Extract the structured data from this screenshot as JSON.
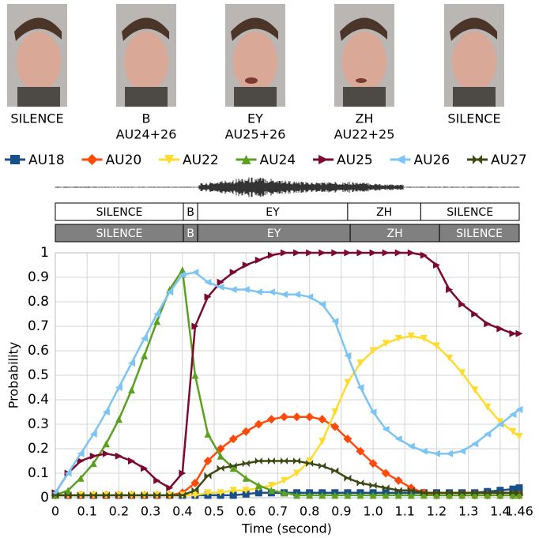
{
  "frames": [
    {
      "labels": [
        "SILENCE"
      ]
    },
    {
      "labels": [
        "B",
        "AU24+26"
      ]
    },
    {
      "labels": [
        "EY",
        "AU25+26"
      ]
    },
    {
      "labels": [
        "ZH",
        "AU22+25"
      ]
    },
    {
      "labels": [
        "SILENCE"
      ]
    }
  ],
  "chart_data": {
    "type": "line",
    "xlabel": "Time (second)",
    "ylabel": "Probability",
    "xlim": [
      0,
      1.46
    ],
    "ylim": [
      0,
      1
    ],
    "xticks": [
      0,
      0.1,
      0.2,
      0.3,
      0.4,
      0.5,
      0.6,
      0.7,
      0.8,
      0.9,
      {
        "value": 1,
        "label": "1.0"
      },
      1.1,
      1.2,
      1.3,
      1.4,
      1.46
    ],
    "yticks": [
      0,
      0.1,
      0.2,
      0.3,
      0.4,
      0.5,
      0.6,
      0.7,
      0.8,
      0.9,
      1
    ],
    "grid": true,
    "segments": [
      [
        {
          "label": "SILENCE",
          "start": 0,
          "end": 0.403
        },
        {
          "label": "B",
          "start": 0.403,
          "end": 0.448
        },
        {
          "label": "EY",
          "start": 0.448,
          "end": 0.92
        },
        {
          "label": "ZH",
          "start": 0.92,
          "end": 1.15
        },
        {
          "label": "SILENCE",
          "start": 1.15,
          "end": 1.46
        }
      ],
      [
        {
          "label": "SILENCE",
          "start": 0,
          "end": 0.403
        },
        {
          "label": "B",
          "start": 0.403,
          "end": 0.448
        },
        {
          "label": "EY",
          "start": 0.448,
          "end": 0.928
        },
        {
          "label": "ZH",
          "start": 0.928,
          "end": 1.209
        },
        {
          "label": "SILENCE",
          "start": 1.209,
          "end": 1.46
        }
      ]
    ],
    "x": [
      0,
      0.04,
      0.08,
      0.12,
      0.16,
      0.2,
      0.24,
      0.28,
      0.32,
      0.36,
      0.4,
      0.44,
      0.48,
      0.52,
      0.56,
      0.6,
      0.64,
      0.68,
      0.72,
      0.76,
      0.8,
      0.84,
      0.88,
      0.92,
      0.96,
      1.0,
      1.04,
      1.08,
      1.12,
      1.16,
      1.2,
      1.24,
      1.28,
      1.32,
      1.36,
      1.4,
      1.44,
      1.46
    ],
    "series": [
      {
        "name": "AU18",
        "color": "#1a4f8a",
        "marker": "square",
        "values": [
          0.01,
          0.01,
          0.01,
          0.01,
          0.01,
          0.01,
          0.01,
          0.01,
          0.01,
          0.01,
          0.01,
          0.01,
          0.01,
          0.01,
          0.01,
          0.015,
          0.02,
          0.02,
          0.02,
          0.02,
          0.02,
          0.02,
          0.02,
          0.02,
          0.02,
          0.02,
          0.02,
          0.02,
          0.02,
          0.02,
          0.02,
          0.02,
          0.02,
          0.02,
          0.025,
          0.03,
          0.035,
          0.04
        ]
      },
      {
        "name": "AU20",
        "color": "#ff4a0a",
        "marker": "diamond",
        "values": [
          0.01,
          0.01,
          0.01,
          0.01,
          0.01,
          0.01,
          0.01,
          0.01,
          0.01,
          0.01,
          0.02,
          0.06,
          0.15,
          0.2,
          0.24,
          0.27,
          0.3,
          0.32,
          0.33,
          0.33,
          0.33,
          0.32,
          0.29,
          0.24,
          0.19,
          0.14,
          0.1,
          0.07,
          0.04,
          0.02,
          0.01,
          0.01,
          0.01,
          0.01,
          0.01,
          0.01,
          0.01,
          0.01
        ]
      },
      {
        "name": "AU22",
        "color": "#ffdb2e",
        "marker": "triangle-down",
        "values": [
          0.01,
          0.01,
          0.01,
          0.01,
          0.01,
          0.01,
          0.01,
          0.01,
          0.01,
          0.01,
          0.01,
          0.01,
          0.02,
          0.02,
          0.03,
          0.03,
          0.04,
          0.05,
          0.07,
          0.1,
          0.15,
          0.23,
          0.35,
          0.47,
          0.55,
          0.6,
          0.63,
          0.65,
          0.66,
          0.65,
          0.62,
          0.57,
          0.51,
          0.44,
          0.37,
          0.31,
          0.27,
          0.25
        ]
      },
      {
        "name": "AU24",
        "color": "#5ca021",
        "marker": "triangle-up",
        "values": [
          0.01,
          0.03,
          0.08,
          0.14,
          0.22,
          0.32,
          0.44,
          0.58,
          0.72,
          0.85,
          0.93,
          0.5,
          0.26,
          0.17,
          0.12,
          0.08,
          0.05,
          0.03,
          0.02,
          0.01,
          0.01,
          0.01,
          0.01,
          0.01,
          0.01,
          0.01,
          0.01,
          0.01,
          0.01,
          0.01,
          0.01,
          0.01,
          0.01,
          0.01,
          0.01,
          0.01,
          0.01,
          0.01
        ]
      },
      {
        "name": "AU25",
        "color": "#7b0a2e",
        "marker": "triangle-right",
        "values": [
          0.02,
          0.1,
          0.15,
          0.17,
          0.18,
          0.17,
          0.15,
          0.12,
          0.07,
          0.04,
          0.1,
          0.7,
          0.82,
          0.88,
          0.92,
          0.95,
          0.97,
          0.99,
          1,
          1,
          1,
          1,
          1,
          1,
          1,
          1,
          1,
          1,
          1,
          0.99,
          0.95,
          0.85,
          0.79,
          0.75,
          0.71,
          0.69,
          0.67,
          0.67
        ]
      },
      {
        "name": "AU26",
        "color": "#7cc4f4",
        "marker": "triangle-left",
        "values": [
          0.02,
          0.1,
          0.18,
          0.26,
          0.35,
          0.45,
          0.55,
          0.65,
          0.75,
          0.84,
          0.91,
          0.92,
          0.88,
          0.86,
          0.85,
          0.85,
          0.84,
          0.84,
          0.83,
          0.83,
          0.82,
          0.79,
          0.72,
          0.58,
          0.45,
          0.35,
          0.28,
          0.24,
          0.21,
          0.19,
          0.18,
          0.18,
          0.19,
          0.22,
          0.26,
          0.3,
          0.34,
          0.36
        ]
      },
      {
        "name": "AU27",
        "color": "#3d4a14",
        "marker": "bowtie",
        "values": [
          0.01,
          0.01,
          0.01,
          0.01,
          0.01,
          0.01,
          0.01,
          0.01,
          0.01,
          0.01,
          0.01,
          0.03,
          0.09,
          0.12,
          0.13,
          0.14,
          0.15,
          0.15,
          0.15,
          0.15,
          0.14,
          0.13,
          0.11,
          0.08,
          0.06,
          0.05,
          0.04,
          0.03,
          0.03,
          0.02,
          0.02,
          0.02,
          0.02,
          0.02,
          0.02,
          0.02,
          0.02,
          0.02
        ]
      }
    ]
  }
}
